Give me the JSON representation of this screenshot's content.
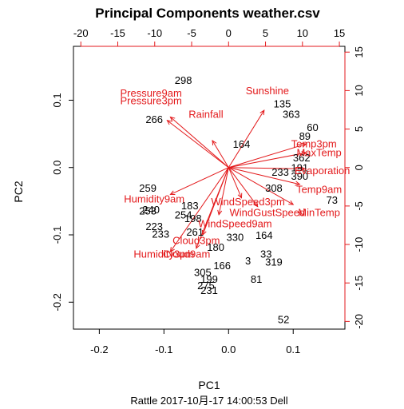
{
  "chart_data": {
    "type": "scatter",
    "title": "Principal Components weather.csv",
    "xlabel": "PC1",
    "ylabel": "PC2",
    "subtitle": "Rattle 2017-10月-17 14:00:53 Dell",
    "xlim": [
      -0.24,
      0.18
    ],
    "ylim": [
      -0.24,
      0.18
    ],
    "x_ticks": [
      -0.2,
      -0.1,
      0.0,
      0.1
    ],
    "y_ticks": [
      -0.2,
      -0.1,
      0.0,
      0.1
    ],
    "top_axis_ticks": [
      -20,
      -15,
      -10,
      -5,
      0,
      5,
      10,
      15
    ],
    "right_axis_ticks": [
      15,
      10,
      5,
      0,
      -5,
      -10,
      -15,
      -20
    ],
    "secondary_scale_factor": 87.5,
    "arrow_color": "#e31a1c",
    "observations": [
      {
        "label": "298",
        "x": -0.07,
        "y": 0.13
      },
      {
        "label": "266",
        "x": -0.115,
        "y": 0.072
      },
      {
        "label": "135",
        "x": 0.083,
        "y": 0.095
      },
      {
        "label": "363",
        "x": 0.097,
        "y": 0.08
      },
      {
        "label": "60",
        "x": 0.13,
        "y": 0.06
      },
      {
        "label": "89",
        "x": 0.118,
        "y": 0.047
      },
      {
        "label": "362",
        "x": 0.113,
        "y": 0.015
      },
      {
        "label": "191",
        "x": 0.11,
        "y": 0.0
      },
      {
        "label": "390",
        "x": 0.11,
        "y": -0.012
      },
      {
        "label": "73",
        "x": 0.16,
        "y": -0.048
      },
      {
        "label": "259",
        "x": -0.125,
        "y": -0.03
      },
      {
        "label": "253",
        "x": -0.125,
        "y": -0.064
      },
      {
        "label": "223",
        "x": -0.115,
        "y": -0.087
      },
      {
        "label": "233",
        "x": -0.105,
        "y": -0.098
      },
      {
        "label": "261",
        "x": -0.052,
        "y": -0.095
      },
      {
        "label": "183",
        "x": -0.06,
        "y": -0.056
      },
      {
        "label": "198",
        "x": -0.055,
        "y": -0.075
      },
      {
        "label": "254",
        "x": -0.07,
        "y": -0.07
      },
      {
        "label": "330",
        "x": 0.01,
        "y": -0.103
      },
      {
        "label": "164",
        "x": 0.055,
        "y": -0.1
      },
      {
        "label": "33",
        "x": 0.058,
        "y": -0.128
      },
      {
        "label": "319",
        "x": 0.07,
        "y": -0.14
      },
      {
        "label": "3",
        "x": 0.03,
        "y": -0.138
      },
      {
        "label": "81",
        "x": 0.043,
        "y": -0.165
      },
      {
        "label": "305",
        "x": -0.04,
        "y": -0.155
      },
      {
        "label": "199",
        "x": -0.03,
        "y": -0.165
      },
      {
        "label": "275",
        "x": -0.035,
        "y": -0.175
      },
      {
        "label": "231",
        "x": -0.03,
        "y": -0.182
      },
      {
        "label": "52",
        "x": 0.085,
        "y": -0.225
      },
      {
        "label": "166",
        "x": -0.01,
        "y": -0.145
      },
      {
        "label": "180",
        "x": -0.02,
        "y": -0.118
      },
      {
        "label": "308",
        "x": 0.07,
        "y": -0.03
      },
      {
        "label": "233",
        "x": 0.08,
        "y": -0.006
      },
      {
        "label": "164",
        "x": 0.02,
        "y": 0.035
      },
      {
        "label": "240",
        "x": -0.12,
        "y": -0.062
      }
    ],
    "variables": [
      {
        "label": "Sunshine",
        "x": 0.055,
        "y": 0.085,
        "lx": 0.06,
        "ly": 0.115
      },
      {
        "label": "Pressure9am",
        "x": -0.09,
        "y": 0.075,
        "lx": -0.12,
        "ly": 0.111
      },
      {
        "label": "Pressure3pm",
        "x": -0.095,
        "y": 0.07,
        "lx": -0.12,
        "ly": 0.1
      },
      {
        "label": "Temp3pm",
        "x": 0.12,
        "y": 0.035,
        "lx": 0.132,
        "ly": 0.036
      },
      {
        "label": "MaxTemp",
        "x": 0.12,
        "y": 0.022,
        "lx": 0.14,
        "ly": 0.023
      },
      {
        "label": "Evaporation",
        "x": 0.118,
        "y": -0.002,
        "lx": 0.145,
        "ly": -0.004
      },
      {
        "label": "Temp9am",
        "x": 0.11,
        "y": -0.025,
        "lx": 0.14,
        "ly": -0.032
      },
      {
        "label": "MinTemp",
        "x": 0.1,
        "y": -0.055,
        "lx": 0.14,
        "ly": -0.066
      },
      {
        "label": "WindGustSpeed",
        "x": 0.045,
        "y": -0.058,
        "lx": 0.06,
        "ly": -0.066
      },
      {
        "label": "WindSpeed3pm",
        "x": 0.02,
        "y": -0.045,
        "lx": 0.03,
        "ly": -0.05
      },
      {
        "label": "WindSpeed9am",
        "x": -0.015,
        "y": -0.07,
        "lx": 0.01,
        "ly": -0.083
      },
      {
        "label": "Humidity9am",
        "x": -0.09,
        "y": -0.04,
        "lx": -0.115,
        "ly": -0.046
      },
      {
        "label": "Humidity3pm",
        "x": -0.09,
        "y": -0.125,
        "lx": -0.1,
        "ly": -0.128
      },
      {
        "label": "Cloud3pm",
        "x": -0.04,
        "y": -0.1,
        "lx": -0.05,
        "ly": -0.108
      },
      {
        "label": "Cloud9am",
        "x": -0.05,
        "y": -0.12,
        "lx": -0.065,
        "ly": -0.128
      },
      {
        "label": "Rainfall",
        "x": -0.025,
        "y": 0.04,
        "lx": -0.035,
        "ly": 0.08
      }
    ]
  }
}
